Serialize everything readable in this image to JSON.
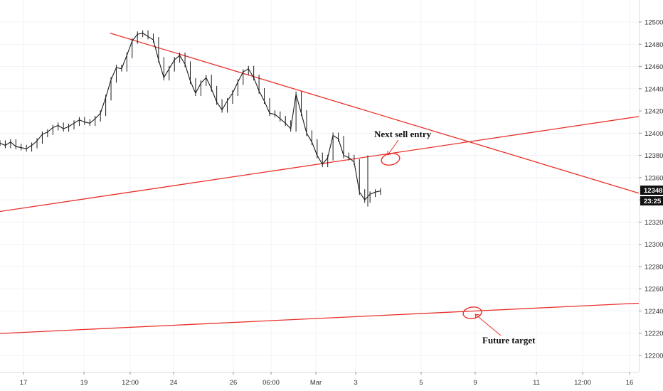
{
  "chart_data": {
    "type": "line",
    "instrument_note": "",
    "price_axis": {
      "ticks": [
        12500,
        12480,
        12460,
        12440,
        12420,
        12400,
        12380,
        12360,
        12340,
        12320,
        12300,
        12280,
        12260,
        12240,
        12220,
        12200
      ],
      "tick_labels": [
        "12500",
        "12480",
        "12460",
        "12440",
        "12420",
        "12400",
        "12380",
        "12360",
        "12340",
        "12320",
        "12300",
        "12280",
        "12260",
        "12240",
        "12220",
        "12200"
      ],
      "range": [
        12188,
        12518
      ],
      "last_price_label": "12348",
      "countdown_label": "23:25"
    },
    "time_axis": {
      "tick_labels": [
        "17",
        "19",
        "12:00",
        "24",
        "26",
        "06:00",
        "Mar",
        "3",
        "5",
        "9",
        "11",
        "12:00",
        "16"
      ]
    },
    "series": [
      {
        "values": [
          12391,
          12389,
          12392,
          12388,
          12387,
          12386,
          12389,
          12393,
          12399,
          12401,
          12405,
          12407,
          12404,
          12406,
          12409,
          12412,
          12410,
          12409,
          12413,
          12418,
          12432,
          12448,
          12459,
          12458,
          12470,
          12483,
          12489,
          12490,
          12487,
          12484,
          12466,
          12450,
          12458,
          12466,
          12470,
          12462,
          12447,
          12436,
          12445,
          12450,
          12440,
          12428,
          12421,
          12429,
          12436,
          12446,
          12455,
          12458,
          12450,
          12438,
          12429,
          12418,
          12417,
          12413,
          12409,
          12404,
          12435,
          12418,
          12400,
          12392,
          12380,
          12372,
          12378,
          12398,
          12395,
          12380,
          12378,
          12374,
          12347,
          12340,
          12345,
          12347,
          12348
        ]
      }
    ],
    "trendlines": [
      {
        "color": "#e8302a",
        "points": [
          [
            "Feb 21 00:00",
            12490
          ],
          [
            "Mar 16 18:00",
            12346
          ]
        ]
      },
      {
        "color": "#e8302a",
        "points": [
          [
            "Feb 14 00:00",
            12324
          ],
          [
            "Mar 16 18:00",
            12415
          ]
        ]
      },
      {
        "color": "#e8302a",
        "points": [
          [
            "Feb 14 00:00",
            12218
          ],
          [
            "Mar 16 18:00",
            12247
          ]
        ]
      }
    ],
    "annotations": [
      {
        "text": "Next sell entry"
      },
      {
        "text": "Future target"
      }
    ],
    "colors": {
      "series": "#1a1a1a",
      "trendline": "#e8302a",
      "axis_tag": "#111111",
      "grid": "#f0f3f8"
    },
    "grid": true,
    "legend": "none"
  }
}
